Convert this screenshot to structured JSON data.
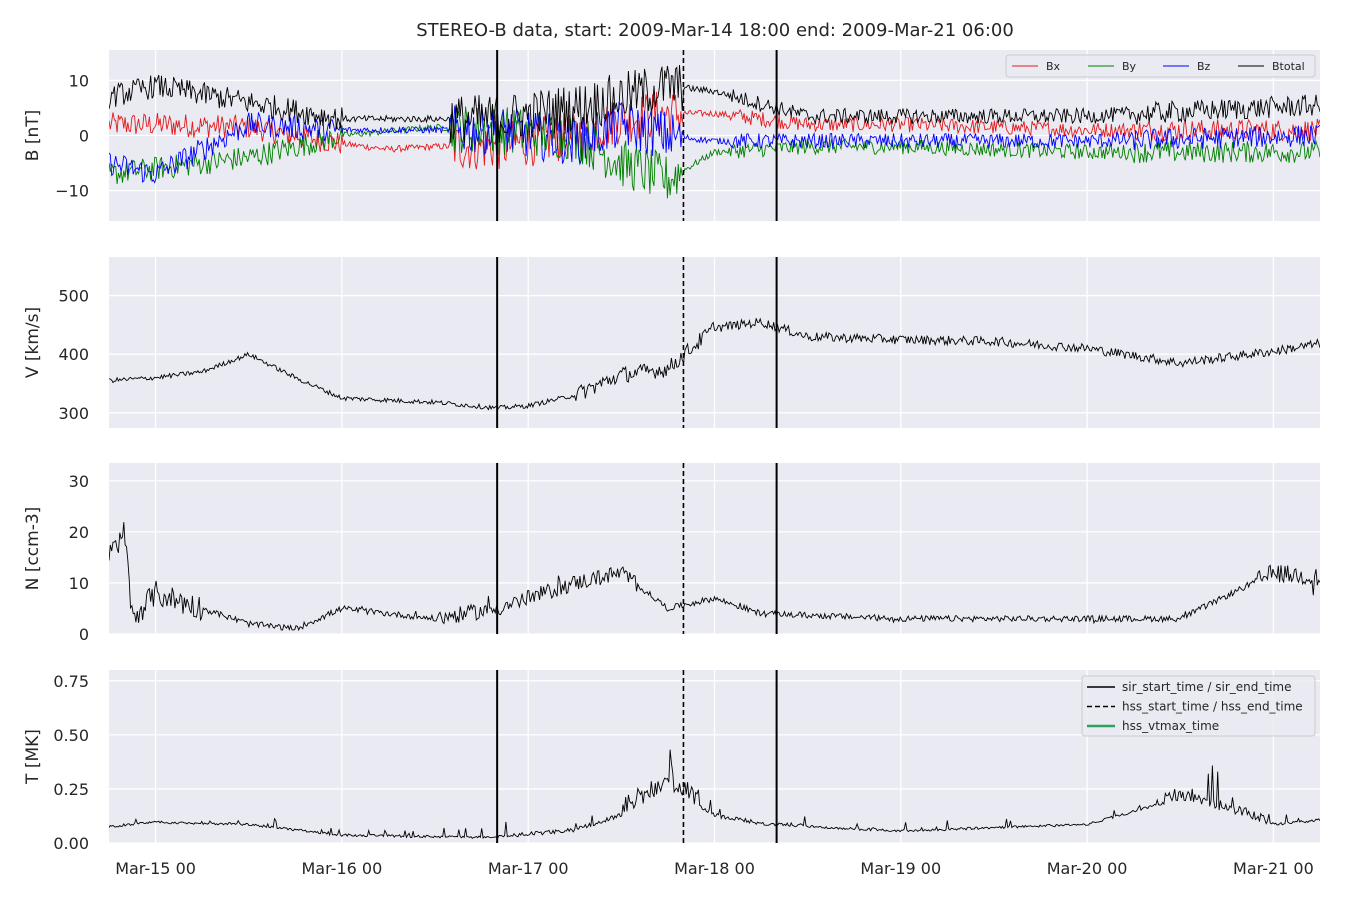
{
  "chart_data": {
    "type": "line",
    "title": "STEREO-B data, start: 2009-Mar-14 18:00  end: 2009-Mar-21 06:00",
    "x_range": [
      "2009-03-14 18:00",
      "2009-03-21 06:00"
    ],
    "x_tick_labels": [
      "Mar-15 00",
      "Mar-16 00",
      "Mar-17 00",
      "Mar-18 00",
      "Mar-19 00",
      "Mar-20 00",
      "Mar-21 00"
    ],
    "x_ticks": [
      "2009-03-15 00:00",
      "2009-03-16 00:00",
      "2009-03-17 00:00",
      "2009-03-18 00:00",
      "2009-03-19 00:00",
      "2009-03-20 00:00",
      "2009-03-21 00:00"
    ],
    "grid": true,
    "events": [
      {
        "kind": "sir_start_time / sir_end_time",
        "style": "solid",
        "times": [
          "2009-03-16 20:00",
          "2009-03-18 08:00"
        ]
      },
      {
        "kind": "hss_start_time / hss_end_time",
        "style": "dashed",
        "times": [
          "2009-03-17 20:00"
        ]
      }
    ],
    "panels": [
      {
        "ylabel": "B [nT]",
        "ylim": [
          -15.5,
          15.5
        ],
        "yticks": [
          -10,
          0,
          10
        ],
        "ytick_labels": [
          "−10",
          "0",
          "10"
        ],
        "legend_position": "top-right",
        "series": [
          {
            "name": "Bx",
            "color": "#e41a1c",
            "points": [
              [
                "2009-03-14 18:00",
                2
              ],
              [
                "2009-03-15 00:00",
                2
              ],
              [
                "2009-03-15 12:00",
                1.5
              ],
              [
                "2009-03-16 00:00",
                -1.5
              ],
              [
                "2009-03-16 06:00",
                -2.5
              ],
              [
                "2009-03-16 12:00",
                -2
              ],
              [
                "2009-03-16 20:00",
                -2
              ],
              [
                "2009-03-17 06:00",
                0
              ],
              [
                "2009-03-17 12:00",
                3
              ],
              [
                "2009-03-17 18:00",
                4
              ],
              [
                "2009-03-18 00:00",
                4
              ],
              [
                "2009-03-18 12:00",
                2
              ],
              [
                "2009-03-19 00:00",
                2
              ],
              [
                "2009-03-20 00:00",
                1
              ],
              [
                "2009-03-21 06:00",
                1
              ]
            ]
          },
          {
            "name": "By",
            "color": "#008000",
            "points": [
              [
                "2009-03-14 18:00",
                -7
              ],
              [
                "2009-03-15 00:00",
                -6
              ],
              [
                "2009-03-15 12:00",
                -4
              ],
              [
                "2009-03-16 00:00",
                0
              ],
              [
                "2009-03-16 12:00",
                1.5
              ],
              [
                "2009-03-16 20:00",
                1
              ],
              [
                "2009-03-17 06:00",
                0
              ],
              [
                "2009-03-17 12:00",
                -5
              ],
              [
                "2009-03-17 18:00",
                -8
              ],
              [
                "2009-03-18 00:00",
                -3
              ],
              [
                "2009-03-18 12:00",
                -2
              ],
              [
                "2009-03-19 00:00",
                -2
              ],
              [
                "2009-03-20 00:00",
                -3
              ],
              [
                "2009-03-21 06:00",
                -3
              ]
            ]
          },
          {
            "name": "Bz",
            "color": "#0000ff",
            "points": [
              [
                "2009-03-14 18:00",
                -5
              ],
              [
                "2009-03-15 00:00",
                -7
              ],
              [
                "2009-03-15 12:00",
                2
              ],
              [
                "2009-03-16 00:00",
                1
              ],
              [
                "2009-03-16 12:00",
                1
              ],
              [
                "2009-03-16 20:00",
                1
              ],
              [
                "2009-03-17 06:00",
                -1
              ],
              [
                "2009-03-17 12:00",
                2
              ],
              [
                "2009-03-17 18:00",
                0
              ],
              [
                "2009-03-18 00:00",
                -1
              ],
              [
                "2009-03-18 12:00",
                -1
              ],
              [
                "2009-03-19 00:00",
                -1
              ],
              [
                "2009-03-20 00:00",
                -1
              ],
              [
                "2009-03-21 06:00",
                0
              ]
            ]
          },
          {
            "name": "Btotal",
            "color": "#000000",
            "points": [
              [
                "2009-03-14 18:00",
                7
              ],
              [
                "2009-03-15 00:00",
                9
              ],
              [
                "2009-03-15 12:00",
                6
              ],
              [
                "2009-03-16 00:00",
                3
              ],
              [
                "2009-03-16 12:00",
                3
              ],
              [
                "2009-03-16 20:00",
                3
              ],
              [
                "2009-03-17 06:00",
                5
              ],
              [
                "2009-03-17 12:00",
                7
              ],
              [
                "2009-03-17 18:00",
                9
              ],
              [
                "2009-03-18 00:00",
                8
              ],
              [
                "2009-03-18 12:00",
                3.5
              ],
              [
                "2009-03-19 00:00",
                3.5
              ],
              [
                "2009-03-20 00:00",
                3.5
              ],
              [
                "2009-03-21 06:00",
                5.5
              ]
            ]
          }
        ]
      },
      {
        "ylabel": "V [km/s]",
        "ylim": [
          274,
          566
        ],
        "yticks": [
          300,
          400,
          500
        ],
        "ytick_labels": [
          "300",
          "400",
          "500"
        ],
        "series": [
          {
            "name": "",
            "color": "#000000",
            "points": [
              [
                "2009-03-14 18:00",
                355
              ],
              [
                "2009-03-15 00:00",
                360
              ],
              [
                "2009-03-15 06:00",
                370
              ],
              [
                "2009-03-15 12:00",
                400
              ],
              [
                "2009-03-15 18:00",
                360
              ],
              [
                "2009-03-16 00:00",
                325
              ],
              [
                "2009-03-16 12:00",
                318
              ],
              [
                "2009-03-16 20:00",
                308
              ],
              [
                "2009-03-17 00:00",
                312
              ],
              [
                "2009-03-17 06:00",
                330
              ],
              [
                "2009-03-17 12:00",
                365
              ],
              [
                "2009-03-17 18:00",
                375
              ],
              [
                "2009-03-18 00:00",
                445
              ],
              [
                "2009-03-18 06:00",
                455
              ],
              [
                "2009-03-18 12:00",
                430
              ],
              [
                "2009-03-19 00:00",
                425
              ],
              [
                "2009-03-19 12:00",
                422
              ],
              [
                "2009-03-20 00:00",
                410
              ],
              [
                "2009-03-20 12:00",
                385
              ],
              [
                "2009-03-21 00:00",
                405
              ],
              [
                "2009-03-21 06:00",
                418
              ]
            ]
          }
        ]
      },
      {
        "ylabel": "N [ccm-3]",
        "ylim": [
          0,
          33.5
        ],
        "yticks": [
          0,
          10,
          20,
          30
        ],
        "ytick_labels": [
          "0",
          "10",
          "20",
          "30"
        ],
        "series": [
          {
            "name": "",
            "color": "#000000",
            "points": [
              [
                "2009-03-14 18:00",
                15
              ],
              [
                "2009-03-14 20:00",
                20
              ],
              [
                "2009-03-14 21:00",
                3
              ],
              [
                "2009-03-15 00:00",
                8
              ],
              [
                "2009-03-15 06:00",
                5
              ],
              [
                "2009-03-15 12:00",
                2
              ],
              [
                "2009-03-15 18:00",
                1
              ],
              [
                "2009-03-16 00:00",
                5
              ],
              [
                "2009-03-16 12:00",
                3
              ],
              [
                "2009-03-16 20:00",
                5
              ],
              [
                "2009-03-17 06:00",
                10
              ],
              [
                "2009-03-17 12:00",
                12
              ],
              [
                "2009-03-17 18:00",
                5
              ],
              [
                "2009-03-18 00:00",
                7
              ],
              [
                "2009-03-18 06:00",
                4
              ],
              [
                "2009-03-19 00:00",
                3
              ],
              [
                "2009-03-20 00:00",
                3
              ],
              [
                "2009-03-20 12:00",
                3
              ],
              [
                "2009-03-21 00:00",
                12
              ],
              [
                "2009-03-21 06:00",
                11
              ]
            ]
          }
        ]
      },
      {
        "ylabel": "T [MK]",
        "ylim": [
          0,
          0.8
        ],
        "yticks": [
          0,
          0.25,
          0.5,
          0.75
        ],
        "ytick_labels": [
          "0.00",
          "0.25",
          "0.50",
          "0.75"
        ],
        "legend_position": "top-right",
        "legend": [
          {
            "label": "sir_start_time / sir_end_time",
            "color": "#000000",
            "style": "solid"
          },
          {
            "label": "hss_start_time / hss_end_time",
            "color": "#000000",
            "style": "dashed"
          },
          {
            "label": "hss_vtmax_time",
            "color": "#2ca25f",
            "style": "solid"
          }
        ],
        "series": [
          {
            "name": "",
            "color": "#000000",
            "points": [
              [
                "2009-03-14 18:00",
                0.07
              ],
              [
                "2009-03-15 00:00",
                0.09
              ],
              [
                "2009-03-15 12:00",
                0.08
              ],
              [
                "2009-03-16 00:00",
                0.03
              ],
              [
                "2009-03-16 20:00",
                0.02
              ],
              [
                "2009-03-17 06:00",
                0.05
              ],
              [
                "2009-03-17 12:00",
                0.12
              ],
              [
                "2009-03-17 18:00",
                0.25
              ],
              [
                "2009-03-18 00:00",
                0.12
              ],
              [
                "2009-03-18 06:00",
                0.08
              ],
              [
                "2009-03-19 00:00",
                0.05
              ],
              [
                "2009-03-20 00:00",
                0.08
              ],
              [
                "2009-03-20 12:00",
                0.2
              ],
              [
                "2009-03-21 00:00",
                0.08
              ],
              [
                "2009-03-21 06:00",
                0.1
              ]
            ]
          }
        ]
      }
    ]
  }
}
